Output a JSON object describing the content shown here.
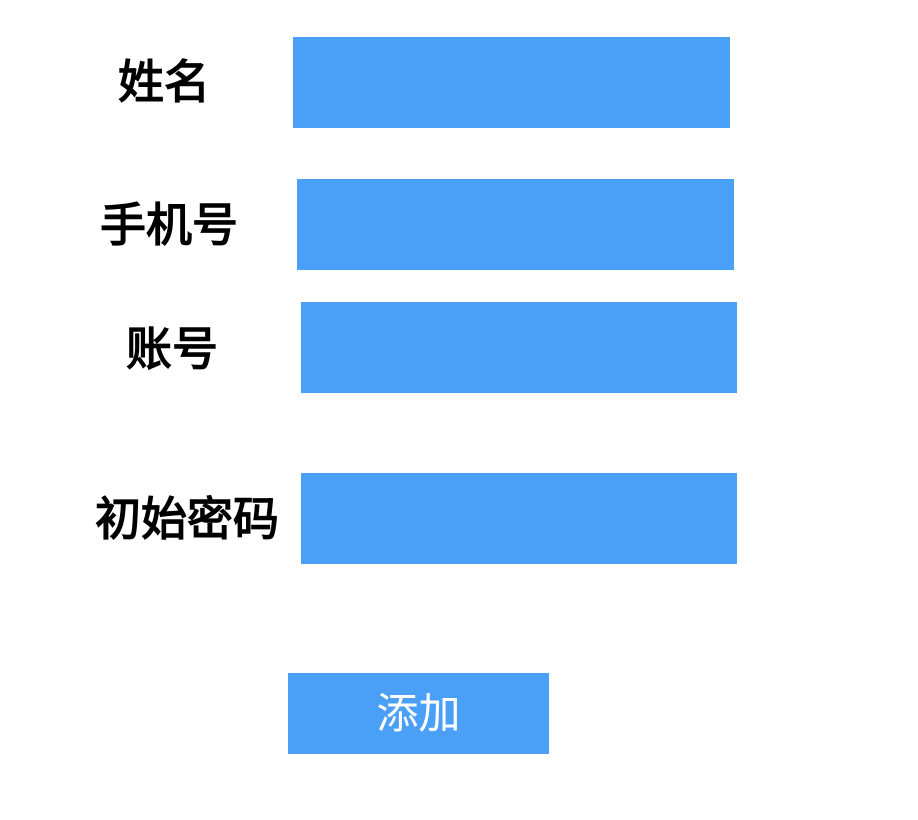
{
  "form": {
    "fields": [
      {
        "label": "姓名",
        "value": ""
      },
      {
        "label": "手机号",
        "value": ""
      },
      {
        "label": "账号",
        "value": ""
      },
      {
        "label": "初始密码",
        "value": ""
      }
    ],
    "submit_label": "添加"
  },
  "colors": {
    "field_background": "#4a9ff7",
    "button_background": "#4a9ff7",
    "label_text": "#000000",
    "button_text": "#ffffff"
  }
}
